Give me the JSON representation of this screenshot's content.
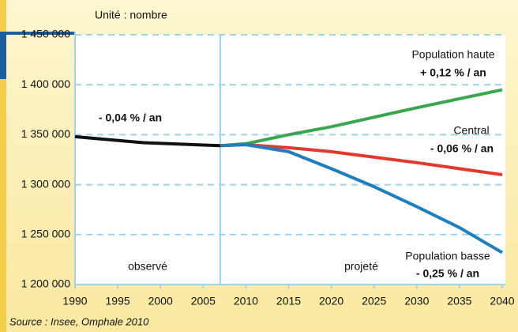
{
  "chart_data": {
    "type": "line",
    "unit_note": "Unité : nombre",
    "source": "Source : Insee, Omphale 2010",
    "period_labels": [
      "observé",
      "projeté"
    ],
    "divider_x": 2007,
    "xlim": [
      1990,
      2040
    ],
    "xticks": [
      1990,
      1995,
      2000,
      2005,
      2010,
      2015,
      2020,
      2025,
      2030,
      2035,
      2040
    ],
    "ylim": [
      1200000,
      1450000
    ],
    "yticks": [
      {
        "value": 1200000,
        "label": "1 200 000"
      },
      {
        "value": 1250000,
        "label": "1 250 000"
      },
      {
        "value": 1300000,
        "label": "1 300 000"
      },
      {
        "value": 1350000,
        "label": "1 350 000"
      },
      {
        "value": 1400000,
        "label": "1 400 000"
      },
      {
        "value": 1450000,
        "label": "1 450 000"
      }
    ],
    "grid": true,
    "series": [
      {
        "rate": "- 0,04 % / an",
        "color": "#111111",
        "x": [
          1990,
          1998,
          2007
        ],
        "values": [
          1348000,
          1342000,
          1339000
        ]
      },
      {
        "name": "Population haute",
        "rate": "+ 0,12 % / an",
        "color": "#3aa650",
        "x": [
          2007,
          2010,
          2015,
          2020,
          2030,
          2040
        ],
        "values": [
          1339000,
          1341000,
          1350000,
          1358000,
          1377000,
          1395000
        ]
      },
      {
        "name": "Central",
        "rate": "- 0,06 % / an",
        "color": "#e03a2f",
        "x": [
          2007,
          2010,
          2015,
          2020,
          2030,
          2040
        ],
        "values": [
          1339000,
          1340000,
          1337000,
          1333000,
          1322000,
          1310000
        ]
      },
      {
        "name": "Population basse",
        "rate": "- 0,25 % / an",
        "color": "#1d7fc0",
        "x": [
          2007,
          2010,
          2015,
          2020,
          2025,
          2030,
          2035,
          2040
        ],
        "values": [
          1339000,
          1340000,
          1333000,
          1316000,
          1298000,
          1278000,
          1257000,
          1232000
        ]
      }
    ]
  }
}
